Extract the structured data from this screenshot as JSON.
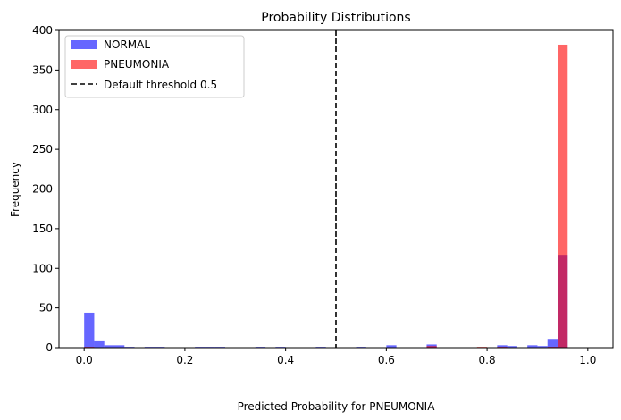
{
  "chart_data": {
    "type": "bar",
    "title": "Probability Distributions",
    "xlabel": "Predicted Probability for PNEUMONIA",
    "ylabel": "Frequency",
    "xlim": [
      -0.05,
      1.05
    ],
    "ylim": [
      0,
      400
    ],
    "xticks": [
      0.0,
      0.2,
      0.4,
      0.6,
      0.8,
      1.0
    ],
    "xtick_labels": [
      "0.0",
      "0.2",
      "0.4",
      "0.6",
      "0.8",
      "1.0"
    ],
    "yticks": [
      0,
      50,
      100,
      150,
      200,
      250,
      300,
      350,
      400
    ],
    "ytick_labels": [
      "0",
      "50",
      "100",
      "150",
      "200",
      "250",
      "300",
      "350",
      "400"
    ],
    "grid": false,
    "legend_position": "top-left",
    "bins": 50,
    "series": [
      {
        "name": "NORMAL",
        "color": "#0000ff",
        "opacity": 0.6,
        "values": [
          44,
          8,
          3,
          3,
          1,
          0,
          1,
          1,
          0,
          0,
          0,
          1,
          1,
          1,
          0,
          0,
          0,
          1,
          0,
          1,
          0,
          0,
          0,
          1,
          0,
          0,
          0,
          1,
          0,
          0,
          3,
          0,
          0,
          0,
          4,
          0,
          0,
          0,
          0,
          0,
          0,
          3,
          2,
          0,
          3,
          2,
          11,
          117,
          0,
          0
        ]
      },
      {
        "name": "PNEUMONIA",
        "color": "#ff0000",
        "opacity": 0.6,
        "values": [
          1,
          0,
          0,
          0,
          0,
          0,
          0,
          0,
          0,
          0,
          0,
          0,
          0,
          0,
          0,
          0,
          0,
          0,
          0,
          0,
          0,
          0,
          0,
          0,
          0,
          0,
          0,
          0,
          0,
          0,
          0,
          0,
          0,
          0,
          2,
          0,
          0,
          0,
          0,
          1,
          0,
          1,
          0,
          0,
          0,
          0,
          1,
          382,
          0,
          0
        ]
      }
    ],
    "threshold": {
      "name": "Default threshold 0.5",
      "value": 0.5,
      "color": "#000000",
      "style": "dashed"
    }
  }
}
